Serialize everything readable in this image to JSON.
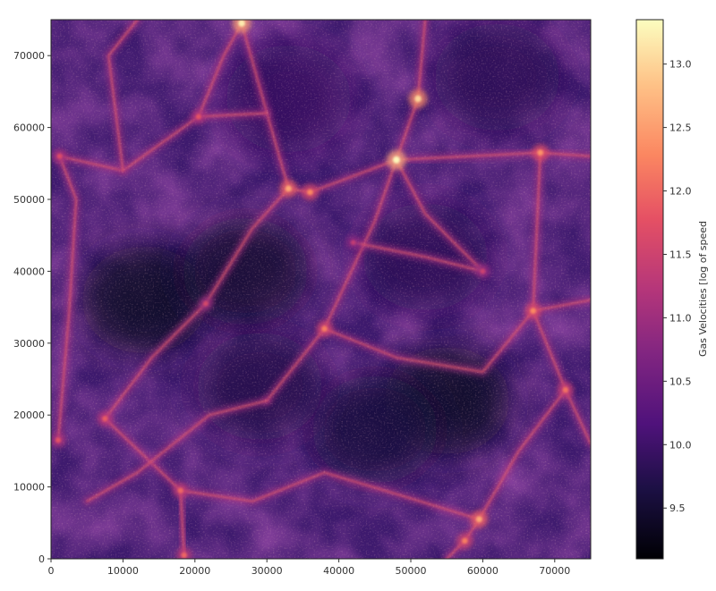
{
  "chart_data": {
    "type": "heatmap",
    "title": "",
    "xlabel": "",
    "ylabel": "",
    "xlim": [
      0,
      75000
    ],
    "ylim": [
      0,
      75000
    ],
    "xticks": [
      "0",
      "10000",
      "20000",
      "30000",
      "40000",
      "50000",
      "60000",
      "70000"
    ],
    "yticks": [
      "0",
      "10000",
      "20000",
      "30000",
      "40000",
      "50000",
      "60000",
      "70000"
    ],
    "grid": false,
    "colormap": "magma",
    "colorbar": {
      "label": "Gas Velocities [log of speed",
      "range": [
        9.1,
        13.35
      ],
      "ticks": [
        "9.5",
        "10.0",
        "10.5",
        "11.0",
        "11.5",
        "12.0",
        "12.5",
        "13.0"
      ]
    },
    "bright_regions": [
      {
        "x": 26500,
        "y": 74500,
        "value": 13.2
      },
      {
        "x": 51000,
        "y": 64000,
        "value": 13.0
      },
      {
        "x": 48000,
        "y": 55500,
        "value": 13.3
      },
      {
        "x": 33000,
        "y": 51500,
        "value": 12.6
      },
      {
        "x": 36000,
        "y": 51000,
        "value": 12.3
      },
      {
        "x": 68000,
        "y": 56500,
        "value": 12.4
      },
      {
        "x": 67000,
        "y": 34500,
        "value": 12.3
      },
      {
        "x": 38000,
        "y": 32000,
        "value": 12.2
      },
      {
        "x": 71500,
        "y": 23500,
        "value": 12.1
      },
      {
        "x": 59500,
        "y": 5500,
        "value": 12.6
      },
      {
        "x": 57500,
        "y": 2500,
        "value": 12.2
      },
      {
        "x": 18000,
        "y": 9500,
        "value": 12.0
      },
      {
        "x": 7500,
        "y": 19500,
        "value": 11.9
      },
      {
        "x": 1000,
        "y": 16500,
        "value": 11.8
      },
      {
        "x": 1200,
        "y": 56000,
        "value": 11.7
      },
      {
        "x": 20500,
        "y": 61500,
        "value": 11.8
      },
      {
        "x": 21500,
        "y": 35500,
        "value": 11.6
      },
      {
        "x": 60000,
        "y": 40000,
        "value": 11.5
      },
      {
        "x": 18500,
        "y": 500,
        "value": 12.0
      },
      {
        "x": 42000,
        "y": 44000,
        "value": 11.4
      }
    ],
    "void_regions": [
      {
        "x": 13000,
        "y": 36000,
        "value": 9.4
      },
      {
        "x": 27000,
        "y": 40000,
        "value": 9.5
      },
      {
        "x": 55000,
        "y": 22000,
        "value": 9.4
      },
      {
        "x": 45000,
        "y": 18000,
        "value": 9.6
      },
      {
        "x": 29000,
        "y": 24000,
        "value": 9.7
      },
      {
        "x": 52000,
        "y": 42000,
        "value": 9.8
      },
      {
        "x": 62000,
        "y": 67000,
        "value": 9.8
      },
      {
        "x": 33000,
        "y": 64000,
        "value": 9.9
      }
    ],
    "filaments": [
      [
        [
          26500,
          74500
        ],
        [
          30000,
          62000
        ],
        [
          33000,
          51500
        ],
        [
          36000,
          51000
        ],
        [
          48000,
          55500
        ]
      ],
      [
        [
          48000,
          55500
        ],
        [
          51000,
          64000
        ],
        [
          52000,
          75000
        ]
      ],
      [
        [
          48000,
          55500
        ],
        [
          68000,
          56500
        ],
        [
          75000,
          56000
        ]
      ],
      [
        [
          48000,
          55500
        ],
        [
          45000,
          47000
        ],
        [
          38000,
          32000
        ],
        [
          30000,
          22000
        ]
      ],
      [
        [
          68000,
          56500
        ],
        [
          67000,
          34500
        ],
        [
          71500,
          23500
        ],
        [
          75000,
          16000
        ]
      ],
      [
        [
          38000,
          32000
        ],
        [
          48000,
          28000
        ],
        [
          60000,
          26000
        ],
        [
          67000,
          34500
        ]
      ],
      [
        [
          59500,
          5500
        ],
        [
          48000,
          9000
        ],
        [
          38000,
          12000
        ],
        [
          28000,
          8000
        ],
        [
          18000,
          9500
        ],
        [
          7500,
          19500
        ]
      ],
      [
        [
          59500,
          5500
        ],
        [
          65000,
          15000
        ],
        [
          71500,
          23500
        ]
      ],
      [
        [
          7500,
          19500
        ],
        [
          14000,
          28000
        ],
        [
          21500,
          35500
        ],
        [
          28000,
          46000
        ],
        [
          33000,
          51500
        ]
      ],
      [
        [
          1200,
          56000
        ],
        [
          10000,
          54000
        ],
        [
          20500,
          61500
        ],
        [
          30000,
          62000
        ]
      ],
      [
        [
          1000,
          16500
        ],
        [
          2500,
          34000
        ],
        [
          3500,
          50000
        ],
        [
          1200,
          56000
        ]
      ],
      [
        [
          18000,
          9500
        ],
        [
          18500,
          500
        ]
      ],
      [
        [
          20500,
          61500
        ],
        [
          24000,
          70000
        ],
        [
          26500,
          74500
        ]
      ],
      [
        [
          10000,
          54000
        ],
        [
          8000,
          70000
        ],
        [
          12000,
          75000
        ]
      ],
      [
        [
          60000,
          40000
        ],
        [
          52000,
          48000
        ],
        [
          48000,
          55500
        ]
      ],
      [
        [
          59500,
          5500
        ],
        [
          57500,
          2500
        ],
        [
          55000,
          0
        ]
      ],
      [
        [
          30000,
          22000
        ],
        [
          22000,
          20000
        ],
        [
          12000,
          12000
        ],
        [
          5000,
          8000
        ]
      ],
      [
        [
          42000,
          44000
        ],
        [
          52000,
          42000
        ],
        [
          60000,
          40000
        ]
      ],
      [
        [
          67000,
          34500
        ],
        [
          75000,
          36000
        ]
      ]
    ]
  }
}
